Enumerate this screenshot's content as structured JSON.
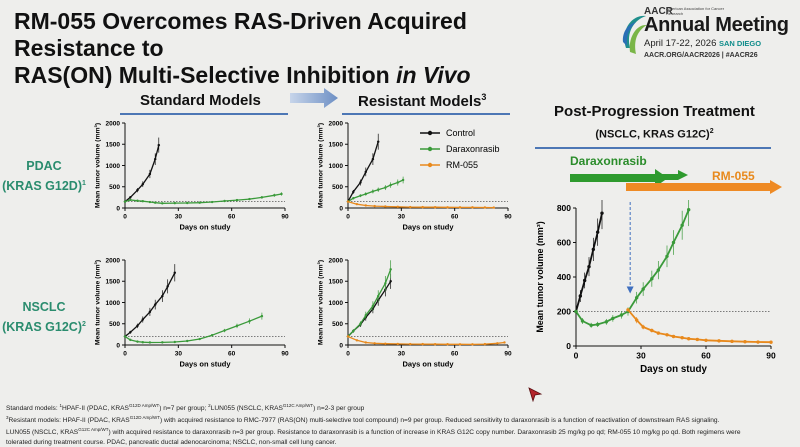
{
  "title": {
    "line1": "RM-055 Overcomes RAS-Driven Acquired Resistance to",
    "line2_prefix": "RAS(ON) Multi-Selective Inhibition ",
    "line2_italic": "in Vivo"
  },
  "logo": {
    "org": "AACR",
    "org_sub": "American Association for Cancer Research",
    "event": "Annual Meeting",
    "dates": "April 17-22, 2026",
    "city": "SAN DIEGO",
    "url": "AACR.ORG/AACR2026 | #AACR26"
  },
  "headers": {
    "standard": "Standard Models",
    "resistant": "Resistant Models",
    "resistant_sup": "3"
  },
  "row_labels": {
    "pdac": "PDAC",
    "pdac_sub": "(KRAS G12D)",
    "pdac_sup": "1",
    "nsclc": "NSCLC",
    "nsclc_sub": "(KRAS G12C)",
    "nsclc_sup": "2"
  },
  "legend": [
    "Control",
    "Daraxonrasib",
    "RM-055"
  ],
  "colors": {
    "control": "#111111",
    "daraxonrasib": "#3a9a3a",
    "rm055": "#e8891c",
    "accent_blue": "#4d77b5",
    "label_green": "#2a8c6e"
  },
  "post_progression": {
    "title": "Post-Progression Treatment",
    "subtitle": "(NSCLC, KRAS G12C)",
    "subtitle_sup": "2",
    "bar_daraxonrasib": "Daraxonrasib",
    "bar_rm055": "RM-055"
  },
  "chart_data": [
    {
      "id": "pdac-standard",
      "type": "line",
      "ylabel": "Mean tumor volume (mm³)",
      "xlabel": "Days on study",
      "xlim": [
        0,
        90
      ],
      "ylim": [
        0,
        2000
      ],
      "xticks": [
        0,
        30,
        60,
        90
      ],
      "yticks": [
        0,
        500,
        1000,
        1500,
        2000
      ],
      "threshold": 150,
      "series": [
        {
          "name": "Control",
          "x": [
            0,
            3,
            7,
            10,
            14,
            17,
            19
          ],
          "y": [
            150,
            250,
            420,
            560,
            800,
            1150,
            1480
          ]
        },
        {
          "name": "Daraxonrasib",
          "x": [
            0,
            3,
            7,
            10,
            14,
            17,
            21,
            28,
            35,
            42,
            49,
            56,
            63,
            70,
            77,
            84,
            88
          ],
          "y": [
            150,
            190,
            170,
            160,
            140,
            125,
            110,
            115,
            118,
            125,
            140,
            165,
            185,
            210,
            250,
            300,
            330
          ]
        }
      ]
    },
    {
      "id": "pdac-resistant",
      "type": "line",
      "ylabel": "Mean tumor volume (mm³)",
      "xlabel": "Days on study",
      "xlim": [
        0,
        90
      ],
      "ylim": [
        0,
        2000
      ],
      "xticks": [
        0,
        30,
        60,
        90
      ],
      "yticks": [
        0,
        500,
        1000,
        1500,
        2000
      ],
      "threshold": 150,
      "series": [
        {
          "name": "Control",
          "x": [
            0,
            3,
            7,
            10,
            14,
            17
          ],
          "y": [
            150,
            380,
            600,
            850,
            1150,
            1560
          ]
        },
        {
          "name": "Daraxonrasib",
          "x": [
            0,
            3,
            7,
            10,
            14,
            17,
            21,
            24,
            28,
            31
          ],
          "y": [
            150,
            230,
            290,
            330,
            390,
            430,
            480,
            540,
            600,
            660
          ]
        },
        {
          "name": "RM-055",
          "x": [
            0,
            5,
            10,
            15,
            21,
            28,
            35,
            42,
            49,
            56,
            63,
            70,
            77,
            82
          ],
          "y": [
            150,
            90,
            60,
            45,
            35,
            28,
            22,
            20,
            18,
            16,
            15,
            14,
            12,
            10
          ]
        }
      ]
    },
    {
      "id": "nsclc-standard",
      "type": "line",
      "ylabel": "Mean tumor volume (mm³)",
      "xlabel": "Days on study",
      "xlim": [
        0,
        90
      ],
      "ylim": [
        0,
        2000
      ],
      "xticks": [
        0,
        30,
        60,
        90
      ],
      "yticks": [
        0,
        500,
        1000,
        1500,
        2000
      ],
      "threshold": 200,
      "series": [
        {
          "name": "Control",
          "x": [
            0,
            3,
            7,
            10,
            14,
            17,
            21,
            24,
            28
          ],
          "y": [
            200,
            300,
            450,
            600,
            780,
            950,
            1150,
            1380,
            1700
          ]
        },
        {
          "name": "Daraxonrasib",
          "x": [
            0,
            3,
            7,
            10,
            14,
            21,
            28,
            35,
            42,
            49,
            56,
            63,
            70,
            77
          ],
          "y": [
            200,
            120,
            80,
            65,
            60,
            62,
            70,
            95,
            140,
            230,
            340,
            450,
            560,
            680
          ]
        }
      ]
    },
    {
      "id": "nsclc-resistant",
      "type": "line",
      "ylabel": "Mean tumor volume (mm³)",
      "xlabel": "Days on study",
      "xlim": [
        0,
        90
      ],
      "ylim": [
        0,
        2000
      ],
      "xticks": [
        0,
        30,
        60,
        90
      ],
      "yticks": [
        0,
        500,
        1000,
        1500,
        2000
      ],
      "threshold": 200,
      "series": [
        {
          "name": "Control",
          "x": [
            0,
            3,
            7,
            10,
            14,
            17,
            21,
            24
          ],
          "y": [
            200,
            330,
            480,
            650,
            850,
            1050,
            1300,
            1500
          ]
        },
        {
          "name": "Daraxonrasib",
          "x": [
            0,
            3,
            7,
            10,
            14,
            17,
            21,
            24
          ],
          "y": [
            200,
            330,
            500,
            700,
            920,
            1150,
            1450,
            1780
          ]
        },
        {
          "name": "RM-055",
          "x": [
            0,
            5,
            10,
            15,
            21,
            28,
            35,
            42,
            49,
            56,
            63,
            70,
            77,
            84,
            88
          ],
          "y": [
            200,
            110,
            60,
            40,
            30,
            25,
            22,
            20,
            18,
            17,
            16,
            15,
            20,
            40,
            60
          ]
        }
      ]
    },
    {
      "id": "post-progression",
      "type": "line",
      "ylabel": "Mean tumor volume (mm³)",
      "xlabel": "Days on study",
      "xlim": [
        0,
        90
      ],
      "ylim": [
        0,
        800
      ],
      "xticks": [
        0,
        30,
        60,
        90
      ],
      "yticks": [
        0,
        200,
        400,
        600,
        800
      ],
      "threshold": 200,
      "switch_day": 25,
      "series": [
        {
          "name": "Control",
          "x": [
            0,
            2,
            4,
            6,
            8,
            10,
            12
          ],
          "y": [
            200,
            290,
            380,
            460,
            560,
            660,
            770
          ]
        },
        {
          "name": "Daraxonrasib",
          "x": [
            0,
            3,
            7,
            10,
            14,
            17,
            21,
            24,
            28,
            31,
            35,
            38,
            42,
            45,
            49,
            52
          ],
          "y": [
            200,
            145,
            120,
            125,
            140,
            160,
            180,
            200,
            280,
            330,
            390,
            440,
            520,
            600,
            700,
            790
          ]
        },
        {
          "name": "RM-055",
          "x": [
            24,
            28,
            31,
            35,
            38,
            42,
            45,
            49,
            52,
            56,
            60,
            66,
            72,
            78,
            84,
            90
          ],
          "y": [
            210,
            150,
            110,
            90,
            75,
            65,
            55,
            48,
            42,
            38,
            33,
            30,
            27,
            25,
            23,
            22
          ]
        }
      ]
    }
  ],
  "footnote": {
    "l1a": "Standard models: ",
    "l1b": "HPAF-II (PDAC, KRAS",
    "l1c": "G12D Amp/WT",
    "l1d": ") n=7 per group; ",
    "l1e": "LUN055 (NSCLC, KRAS",
    "l1f": "G12C Amp/WT",
    "l1g": ") n=2-3 per group",
    "l2a": "Resistant models: ",
    "l2b": "HPAF-II (PDAC, KRAS",
    "l2c": "G12D Amp/WT",
    "l2d": ") with acquired resistance to RMC-7977 (RAS(ON) multi-selective tool compound) n=9 per group. Reduced sensitivity to daraxonrasib is a function of reactivation of downstream RAS signaling.",
    "l3a": "LUN055 (NSCLC, KRAS",
    "l3b": "G12C Amp/WT",
    "l3c": ") with acquired resistance to daraxonrasib n=3 per group. Resistance to daraxonrasib is a function of increase in KRAS G12C copy number. Daraxonrasib 25 mg/kg po qd; RM-055 10 mg/kg po qd. Both regimens were",
    "l4": "tolerated during treatment course. PDAC, pancreatic ductal adenocarcinoma; NSCLC, non-small cell lung cancer."
  }
}
